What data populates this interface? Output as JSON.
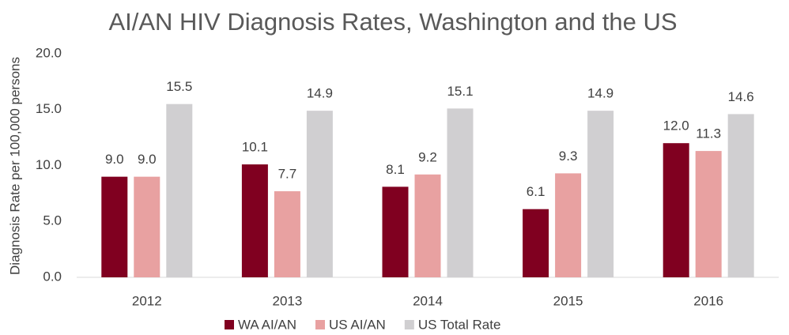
{
  "chart_data": {
    "type": "bar",
    "title": "AI/AN HIV Diagnosis Rates, Washington and the US",
    "y_label": "Diagnosis Rate per 100,000 persons",
    "categories": [
      "2012",
      "2013",
      "2014",
      "2015",
      "2016"
    ],
    "series": [
      {
        "name": "WA AI/AN",
        "color": "#800020",
        "values": [
          9.0,
          10.1,
          8.1,
          6.1,
          12.0
        ],
        "value_labels": [
          "9.0",
          "10.1",
          "8.1",
          "6.1",
          "12.0"
        ]
      },
      {
        "name": "US AI/AN",
        "color": "#e8a1a1",
        "values": [
          9.0,
          7.7,
          9.2,
          9.3,
          11.3
        ],
        "value_labels": [
          "9.0",
          "7.7",
          "9.2",
          "9.3",
          "11.3"
        ]
      },
      {
        "name": "US Total Rate",
        "color": "#d0cfd1",
        "values": [
          15.5,
          14.9,
          15.1,
          14.9,
          14.6
        ],
        "value_labels": [
          "15.5",
          "14.9",
          "15.1",
          "14.9",
          "14.6"
        ]
      }
    ],
    "ylim": [
      0,
      20
    ],
    "yticks": [
      {
        "value": 0,
        "label": "0.0"
      },
      {
        "value": 5,
        "label": "5.0"
      },
      {
        "value": 10,
        "label": "10.0"
      },
      {
        "value": 15,
        "label": "15.0"
      },
      {
        "value": 20,
        "label": "20.0"
      }
    ],
    "legend": "bottom"
  }
}
